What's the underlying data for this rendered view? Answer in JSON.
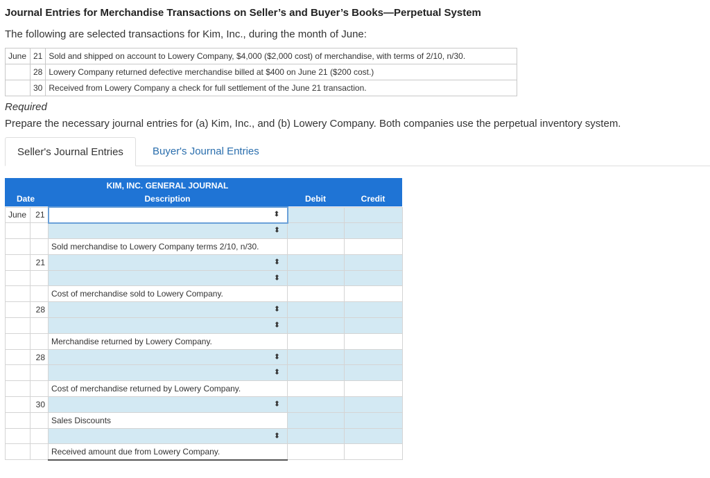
{
  "header": {
    "title": "Journal Entries for Merchandise Transactions on Seller’s and Buyer’s Books—Perpetual System",
    "intro": "The following are selected transactions for Kim, Inc., during the month of June:"
  },
  "transactions": [
    {
      "month": "June",
      "day": "21",
      "text": "Sold and shipped on account to Lowery Company, $4,000 ($2,000 cost) of merchandise, with terms of 2/10, n/30."
    },
    {
      "month": "",
      "day": "28",
      "text": "Lowery Company returned defective merchandise billed at $400 on June 21 ($200 cost.)"
    },
    {
      "month": "",
      "day": "30",
      "text": "Received from Lowery Company a check for full settlement of the June 21 transaction."
    }
  ],
  "required": {
    "label": "Required",
    "text": "Prepare the necessary journal entries for (a) Kim, Inc., and (b) Lowery Company. Both companies use the perpetual inventory system."
  },
  "tabs": {
    "seller": "Seller's Journal Entries",
    "buyer": "Buyer's Journal Entries"
  },
  "journal": {
    "title": "KIM, INC. GENERAL JOURNAL",
    "col_date": "Date",
    "col_desc": "Description",
    "col_debit": "Debit",
    "col_credit": "Credit",
    "arrow_icon": "⬍",
    "rows": [
      {
        "month": "June",
        "day": "21",
        "kind": "select",
        "text": "",
        "focus": true
      },
      {
        "month": "",
        "day": "",
        "kind": "select",
        "text": ""
      },
      {
        "month": "",
        "day": "",
        "kind": "narration",
        "text": "Sold merchandise to Lowery Company terms 2/10, n/30."
      },
      {
        "month": "",
        "day": "21",
        "kind": "select",
        "text": ""
      },
      {
        "month": "",
        "day": "",
        "kind": "select",
        "text": ""
      },
      {
        "month": "",
        "day": "",
        "kind": "narration",
        "text": "Cost of merchandise sold to Lowery Company."
      },
      {
        "month": "",
        "day": "28",
        "kind": "select",
        "text": ""
      },
      {
        "month": "",
        "day": "",
        "kind": "select",
        "text": ""
      },
      {
        "month": "",
        "day": "",
        "kind": "narration",
        "text": "Merchandise returned by Lowery Company."
      },
      {
        "month": "",
        "day": "28",
        "kind": "select",
        "text": ""
      },
      {
        "month": "",
        "day": "",
        "kind": "select",
        "text": ""
      },
      {
        "month": "",
        "day": "",
        "kind": "narration",
        "text": "Cost of merchandise returned by Lowery Company."
      },
      {
        "month": "",
        "day": "30",
        "kind": "select",
        "text": ""
      },
      {
        "month": "",
        "day": "",
        "kind": "static",
        "text": "Sales Discounts"
      },
      {
        "month": "",
        "day": "",
        "kind": "select",
        "text": ""
      },
      {
        "month": "",
        "day": "",
        "kind": "narration",
        "text": "Received amount due from Lowery Company.",
        "last": true
      }
    ]
  }
}
